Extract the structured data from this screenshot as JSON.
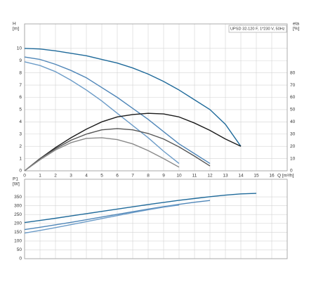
{
  "chart_data": [
    {
      "type": "line",
      "title": "UPSD 32-120 F, 1*230 V, 50Hz",
      "ylabel": "H",
      "yunit": "[m]",
      "y2label": "eta",
      "y2unit": "[%]",
      "xlabel": "Q [m³/h]",
      "x": [
        0,
        1,
        2,
        3,
        4,
        5,
        6,
        7,
        8,
        9,
        10,
        11,
        12,
        13,
        14,
        15,
        16
      ],
      "xlim": [
        0,
        17
      ],
      "xticks": [
        0,
        1,
        2,
        3,
        4,
        5,
        6,
        7,
        8,
        9,
        10,
        11,
        12,
        13,
        14,
        15,
        16
      ],
      "ylim": [
        0,
        12
      ],
      "yticks": [
        0,
        1,
        2,
        3,
        4,
        5,
        6,
        7,
        8,
        9,
        10
      ],
      "y2lim": [
        0,
        120
      ],
      "y2ticks": [
        0,
        10,
        20,
        30,
        40,
        50,
        60,
        70,
        80
      ],
      "grid": true,
      "series": [
        {
          "color": "#1f6a9a",
          "values": [
            10,
            9.95,
            9.8,
            9.6,
            9.4,
            9.1,
            8.8,
            8.4,
            7.9,
            7.3,
            6.6,
            5.8,
            5,
            3.8,
            2.0,
            null,
            null
          ]
        },
        {
          "color": "#4f86b8",
          "values": [
            9.3,
            9.1,
            8.7,
            8.2,
            7.6,
            6.8,
            6.0,
            5.1,
            4.2,
            3.2,
            2.2,
            1.4,
            0.6,
            null,
            null,
            null,
            null
          ]
        },
        {
          "color": "#6c9cc8",
          "values": [
            8.9,
            8.6,
            8.1,
            7.4,
            6.6,
            5.7,
            4.7,
            3.7,
            2.7,
            1.6,
            0.6,
            null,
            null,
            null,
            null,
            null,
            null
          ]
        },
        {
          "color": "#1a1a1a",
          "axis": "y2",
          "values": [
            0,
            10,
            19,
            27,
            34,
            40,
            44,
            46,
            47,
            46.5,
            44,
            39,
            33,
            26,
            20,
            null,
            null
          ]
        },
        {
          "color": "#555555",
          "axis": "y2",
          "values": [
            0,
            10,
            18,
            25,
            30,
            33.5,
            34.5,
            33.5,
            30.5,
            26,
            19.5,
            12,
            4,
            null,
            null,
            null,
            null
          ]
        },
        {
          "color": "#8a8a8a",
          "axis": "y2",
          "values": [
            0,
            9,
            17,
            23,
            26.5,
            27,
            25.5,
            22,
            16.5,
            10,
            3,
            null,
            null,
            null,
            null,
            null,
            null
          ]
        }
      ]
    },
    {
      "type": "line",
      "ylabel": "P1",
      "yunit": "[W]",
      "x": [
        0,
        1,
        2,
        3,
        4,
        5,
        6,
        7,
        8,
        9,
        10,
        11,
        12,
        13,
        14,
        15
      ],
      "xlim": [
        0,
        17
      ],
      "ylim": [
        0,
        450
      ],
      "yticks": [
        0,
        50,
        100,
        150,
        200,
        250,
        300,
        350
      ],
      "grid": true,
      "series": [
        {
          "color": "#1f6a9a",
          "values": [
            205,
            217,
            229,
            242,
            255,
            268,
            281,
            294,
            307,
            319,
            331,
            341,
            351,
            360,
            367,
            370
          ]
        },
        {
          "color": "#4f86b8",
          "values": [
            165,
            178,
            192,
            206,
            221,
            236,
            251,
            266,
            281,
            295,
            308,
            320,
            330,
            null,
            null,
            null
          ]
        },
        {
          "color": "#6c9cc8",
          "values": [
            145,
            160,
            176,
            193,
            210,
            227,
            244,
            261,
            277,
            292,
            304,
            null,
            null,
            null,
            null,
            null
          ]
        }
      ]
    }
  ]
}
